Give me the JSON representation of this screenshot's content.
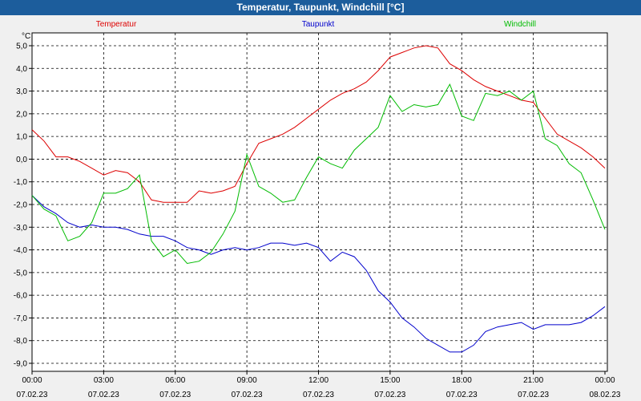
{
  "window": {
    "title": "Temperatur, Taupunkt, Windchill [°C]"
  },
  "chart_data": {
    "type": "line",
    "title": "Temperatur, Taupunkt, Windchill [°C]",
    "ylabel": "°C",
    "ylim": [
      -9.0,
      5.0
    ],
    "yticks": [
      "5,0",
      "4,0",
      "3,0",
      "2,0",
      "1,0",
      "0,0",
      "-1,0",
      "-2,0",
      "-3,0",
      "-4,0",
      "-5,0",
      "-6,0",
      "-7,0",
      "-8,0",
      "-9,0"
    ],
    "xticks": [
      {
        "time": "00:00",
        "date": "07.02.23"
      },
      {
        "time": "03:00",
        "date": "07.02.23"
      },
      {
        "time": "06:00",
        "date": "07.02.23"
      },
      {
        "time": "09:00",
        "date": "07.02.23"
      },
      {
        "time": "12:00",
        "date": "07.02.23"
      },
      {
        "time": "15:00",
        "date": "07.02.23"
      },
      {
        "time": "18:00",
        "date": "07.02.23"
      },
      {
        "time": "21:00",
        "date": "07.02.23"
      },
      {
        "time": "00:00",
        "date": "08.02.23"
      }
    ],
    "xlim_hours": [
      0,
      24
    ],
    "grid": true,
    "legend": "top",
    "series": [
      {
        "name": "Temperatur",
        "color": "#dd0000",
        "x": [
          0,
          0.5,
          1,
          1.5,
          2,
          2.5,
          3,
          3.5,
          4,
          4.5,
          5,
          5.5,
          6,
          6.5,
          7,
          7.5,
          8,
          8.5,
          9,
          9.5,
          10,
          10.5,
          11,
          11.5,
          12,
          12.5,
          13,
          13.5,
          14,
          14.5,
          15,
          15.5,
          16,
          16.5,
          17,
          17.5,
          18,
          18.5,
          19,
          19.5,
          20,
          20.5,
          21,
          21.5,
          22,
          22.5,
          23,
          23.5,
          24
        ],
        "values": [
          1.3,
          0.8,
          0.1,
          0.1,
          -0.1,
          -0.4,
          -0.7,
          -0.5,
          -0.6,
          -1.0,
          -1.8,
          -1.9,
          -1.9,
          -1.9,
          -1.4,
          -1.5,
          -1.4,
          -1.2,
          -0.2,
          0.7,
          0.9,
          1.1,
          1.4,
          1.8,
          2.2,
          2.6,
          2.9,
          3.1,
          3.4,
          3.9,
          4.5,
          4.7,
          4.9,
          5.0,
          4.9,
          4.2,
          3.9,
          3.5,
          3.2,
          3.0,
          2.8,
          2.6,
          2.5,
          1.8,
          1.1,
          0.8,
          0.5,
          0.1,
          -0.4
        ]
      },
      {
        "name": "Taupunkt",
        "color": "#0000cc",
        "x": [
          0,
          0.5,
          1,
          1.5,
          2,
          2.5,
          3,
          3.5,
          4,
          4.5,
          5,
          5.5,
          6,
          6.5,
          7,
          7.5,
          8,
          8.5,
          9,
          9.5,
          10,
          10.5,
          11,
          11.5,
          12,
          12.5,
          13,
          13.5,
          14,
          14.5,
          15,
          15.5,
          16,
          16.5,
          17,
          17.5,
          18,
          18.5,
          19,
          19.5,
          20,
          20.5,
          21,
          21.5,
          22,
          22.5,
          23,
          23.5,
          24
        ],
        "values": [
          -1.6,
          -2.1,
          -2.4,
          -2.8,
          -3.0,
          -2.9,
          -3.0,
          -3.0,
          -3.1,
          -3.3,
          -3.4,
          -3.4,
          -3.6,
          -3.9,
          -4.0,
          -4.2,
          -4.0,
          -3.9,
          -4.0,
          -3.9,
          -3.7,
          -3.7,
          -3.8,
          -3.7,
          -3.9,
          -4.5,
          -4.1,
          -4.3,
          -4.9,
          -5.8,
          -6.3,
          -7.0,
          -7.4,
          -7.9,
          -8.2,
          -8.5,
          -8.5,
          -8.2,
          -7.6,
          -7.4,
          -7.3,
          -7.2,
          -7.5,
          -7.3,
          -7.3,
          -7.3,
          -7.2,
          -6.9,
          -6.5
        ]
      },
      {
        "name": "Windchill",
        "color": "#00bb00",
        "x": [
          0,
          0.5,
          1,
          1.5,
          2,
          2.5,
          3,
          3.5,
          4,
          4.5,
          5,
          5.5,
          6,
          6.5,
          7,
          7.5,
          8,
          8.5,
          9,
          9.5,
          10,
          10.5,
          11,
          11.5,
          12,
          12.5,
          13,
          13.5,
          14,
          14.5,
          15,
          15.5,
          16,
          16.5,
          17,
          17.5,
          18,
          18.5,
          19,
          19.5,
          20,
          20.5,
          21,
          21.5,
          22,
          22.5,
          23,
          23.5,
          24
        ],
        "values": [
          -1.6,
          -2.2,
          -2.5,
          -3.6,
          -3.4,
          -2.8,
          -1.5,
          -1.5,
          -1.3,
          -0.7,
          -3.6,
          -4.3,
          -4.0,
          -4.6,
          -4.5,
          -4.1,
          -3.3,
          -2.3,
          0.2,
          -1.2,
          -1.5,
          -1.9,
          -1.8,
          -0.8,
          0.1,
          -0.2,
          -0.4,
          0.4,
          0.9,
          1.4,
          2.8,
          2.1,
          2.4,
          2.3,
          2.4,
          3.3,
          1.9,
          1.7,
          2.9,
          2.8,
          3.0,
          2.6,
          3.0,
          0.9,
          0.6,
          -0.2,
          -0.6,
          -1.8,
          -3.1
        ]
      }
    ]
  }
}
